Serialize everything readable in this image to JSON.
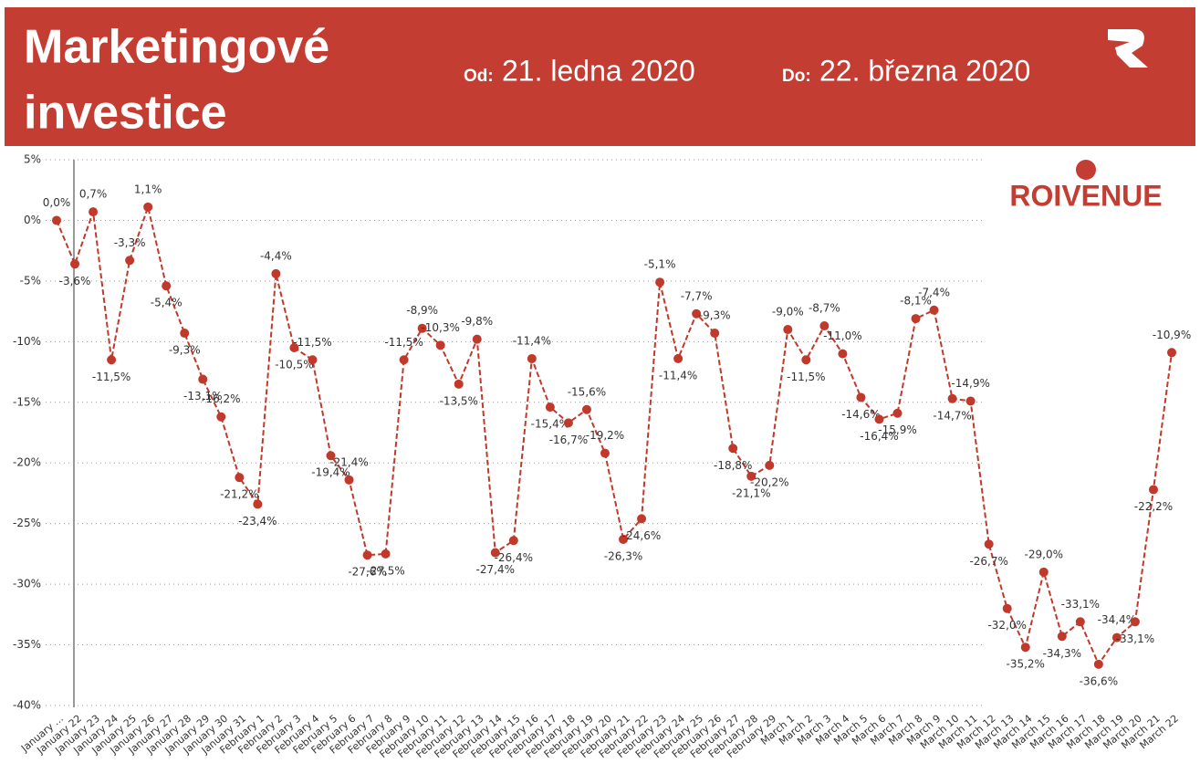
{
  "header": {
    "title": "Marketingové investice",
    "from_label": "Od:",
    "from_date": "21. ledna 2020",
    "to_label": "Do:",
    "to_date": "22. března 2020"
  },
  "logo": "ROIVENUE",
  "chart_data": {
    "type": "line",
    "categories": [
      "January ...",
      "January 22",
      "January 23",
      "January 24",
      "January 25",
      "January 26",
      "January 27",
      "January 28",
      "January 29",
      "January 30",
      "January 31",
      "February 1",
      "February 2",
      "February 3",
      "February 4",
      "February 5",
      "February 6",
      "February 7",
      "February 8",
      "February 9",
      "February 10",
      "February 11",
      "February 12",
      "February 13",
      "February 14",
      "February 15",
      "February 16",
      "February 17",
      "February 18",
      "February 19",
      "February 20",
      "February 21",
      "February 22",
      "February 23",
      "February 24",
      "February 25",
      "February 26",
      "February 27",
      "February 28",
      "February 29",
      "March 1",
      "March 2",
      "March 3",
      "March 4",
      "March 5",
      "March 6",
      "March 7",
      "March 8",
      "March 9",
      "March 10",
      "March 11",
      "March 12",
      "March 13",
      "March 14",
      "March 15",
      "March 16",
      "March 17",
      "March 18",
      "March 19",
      "March 20",
      "March 21",
      "March 22"
    ],
    "series": [
      {
        "name": "Marketingové investice",
        "color": "#c0392b",
        "values": [
          0.0,
          -3.6,
          0.7,
          -11.5,
          -3.3,
          1.1,
          -5.4,
          -9.3,
          -13.1,
          -16.2,
          -21.2,
          -23.4,
          -4.4,
          -10.5,
          -11.5,
          -19.4,
          -21.4,
          -27.6,
          -27.5,
          -11.5,
          -8.9,
          -10.3,
          -13.5,
          -9.8,
          -27.4,
          -26.4,
          -11.4,
          -15.4,
          -16.7,
          -15.6,
          -19.2,
          -26.3,
          -24.6,
          -5.1,
          -11.4,
          -7.7,
          -9.3,
          -18.8,
          -21.1,
          -20.2,
          -9.0,
          -11.5,
          -8.7,
          -11.0,
          -14.6,
          -16.4,
          -15.9,
          -8.1,
          -7.4,
          -14.7,
          -14.9,
          -26.7,
          -32.0,
          -35.2,
          -29.0,
          -34.3,
          -33.1,
          -36.6,
          -34.4,
          -33.1,
          -22.2,
          -10.9
        ],
        "value_labels": [
          "0,0%",
          "-3,6%",
          "0,7%",
          "-11,5%",
          "-3,3%",
          "1,1%",
          "-5,4%",
          "-9,3%",
          "-13,1%",
          "-16,2%",
          "-21,2%",
          "-23,4%",
          "-4,4%",
          "-10,5%",
          "-11,5%",
          "-19,4%",
          "-21,4%",
          "-27,6%",
          "-27,5%",
          "-11,5%",
          "-8,9%",
          "-10,3%",
          "-13,5%",
          "-9,8%",
          "-27,4%",
          "-26,4%",
          "-11,4%",
          "-15,4%",
          "-16,7%",
          "-15,6%",
          "-19,2%",
          "-26,3%",
          "-24,6%",
          "-5,1%",
          "-11,4%",
          "-7,7%",
          "-9,3%",
          "-18,8%",
          "-21,1%",
          "-20,2%",
          "-9,0%",
          "-11,5%",
          "-8,7%",
          "-11,0%",
          "-14,6%",
          "-16,4%",
          "-15,9%",
          "-8,1%",
          "-7,4%",
          "-14,7%",
          "-14,9%",
          "-26,7%",
          "-32,0%",
          "-35,2%",
          "-29,0%",
          "-34,3%",
          "-33,1%",
          "-36,6%",
          "-34,4%",
          "-33,1%",
          "-22,2%",
          "-10,9%"
        ]
      }
    ],
    "ylim": [
      -40,
      5
    ],
    "yticks": [
      {
        "value": -40,
        "label": "-40%"
      },
      {
        "value": -35,
        "label": "-35%"
      },
      {
        "value": -30,
        "label": "-30%"
      },
      {
        "value": -25,
        "label": "-25%"
      },
      {
        "value": -20,
        "label": "-20%"
      },
      {
        "value": -15,
        "label": "-15%"
      },
      {
        "value": -10,
        "label": "-10%"
      },
      {
        "value": -5,
        "label": "-5%"
      },
      {
        "value": 0,
        "label": "0%"
      },
      {
        "value": 5,
        "label": "5%"
      }
    ],
    "grid": true
  }
}
